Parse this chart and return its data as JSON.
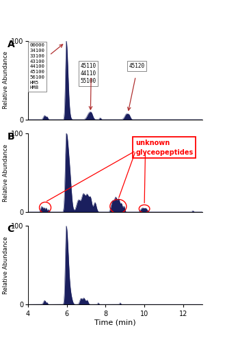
{
  "xlabel": "Time (min)",
  "ylabel": "Relative Abundance",
  "xlim": [
    4,
    13
  ],
  "ylim": [
    0,
    100
  ],
  "fill_color": "#1a1f5e",
  "background_color": "#ffffff",
  "panel_labels": [
    "A",
    "B",
    "C"
  ],
  "box1_text": "00000\n34100\n33100\n43100\n44100\n45100\n56100\nHM5\nHM8",
  "box2_text": "45110\n44110\n55100",
  "box3_text": "45120",
  "unknown_text": "unknown\nglyceopeptides"
}
